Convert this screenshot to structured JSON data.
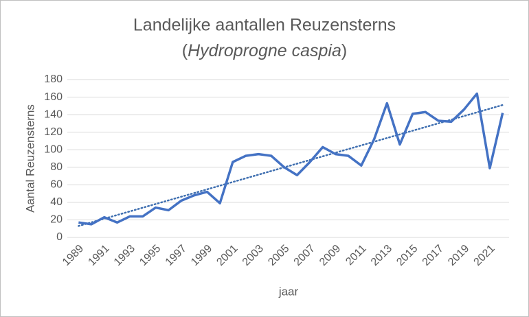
{
  "chart_data": {
    "type": "line",
    "title": "Landelijke aantallen Reuzensterns",
    "subtitle": [
      "(",
      "Hydroprogne caspia",
      ")"
    ],
    "x_label": "jaar",
    "y_label": "Aantal Reuzensterns",
    "x": [
      1989,
      1990,
      1991,
      1992,
      1993,
      1994,
      1995,
      1996,
      1997,
      1998,
      1999,
      2000,
      2001,
      2002,
      2003,
      2004,
      2005,
      2006,
      2007,
      2008,
      2009,
      2010,
      2011,
      2012,
      2013,
      2014,
      2015,
      2016,
      2017,
      2018,
      2019,
      2020,
      2021,
      2022
    ],
    "series": [
      {
        "color": "#4472c4",
        "values": [
          17,
          15,
          23,
          17,
          24,
          24,
          34,
          31,
          42,
          48,
          52,
          39,
          86,
          93,
          95,
          93,
          80,
          71,
          86,
          103,
          95,
          93,
          82,
          112,
          153,
          106,
          141,
          143,
          133,
          132,
          146,
          164,
          79,
          142
        ]
      }
    ],
    "trendline": {
      "x": [
        1989,
        2022
      ],
      "values": [
        13,
        151
      ],
      "color": "#3f6fb0",
      "style": "dotted"
    },
    "xlim": [
      1988.5,
      2022.5
    ],
    "xticks": [
      1989,
      1991,
      1993,
      1995,
      1997,
      1999,
      2001,
      2003,
      2005,
      2007,
      2009,
      2011,
      2013,
      2015,
      2017,
      2019,
      2021
    ],
    "ylim": [
      0,
      180
    ],
    "yticks": [
      0,
      20,
      40,
      60,
      80,
      100,
      120,
      140,
      160,
      180
    ],
    "grid": true
  }
}
